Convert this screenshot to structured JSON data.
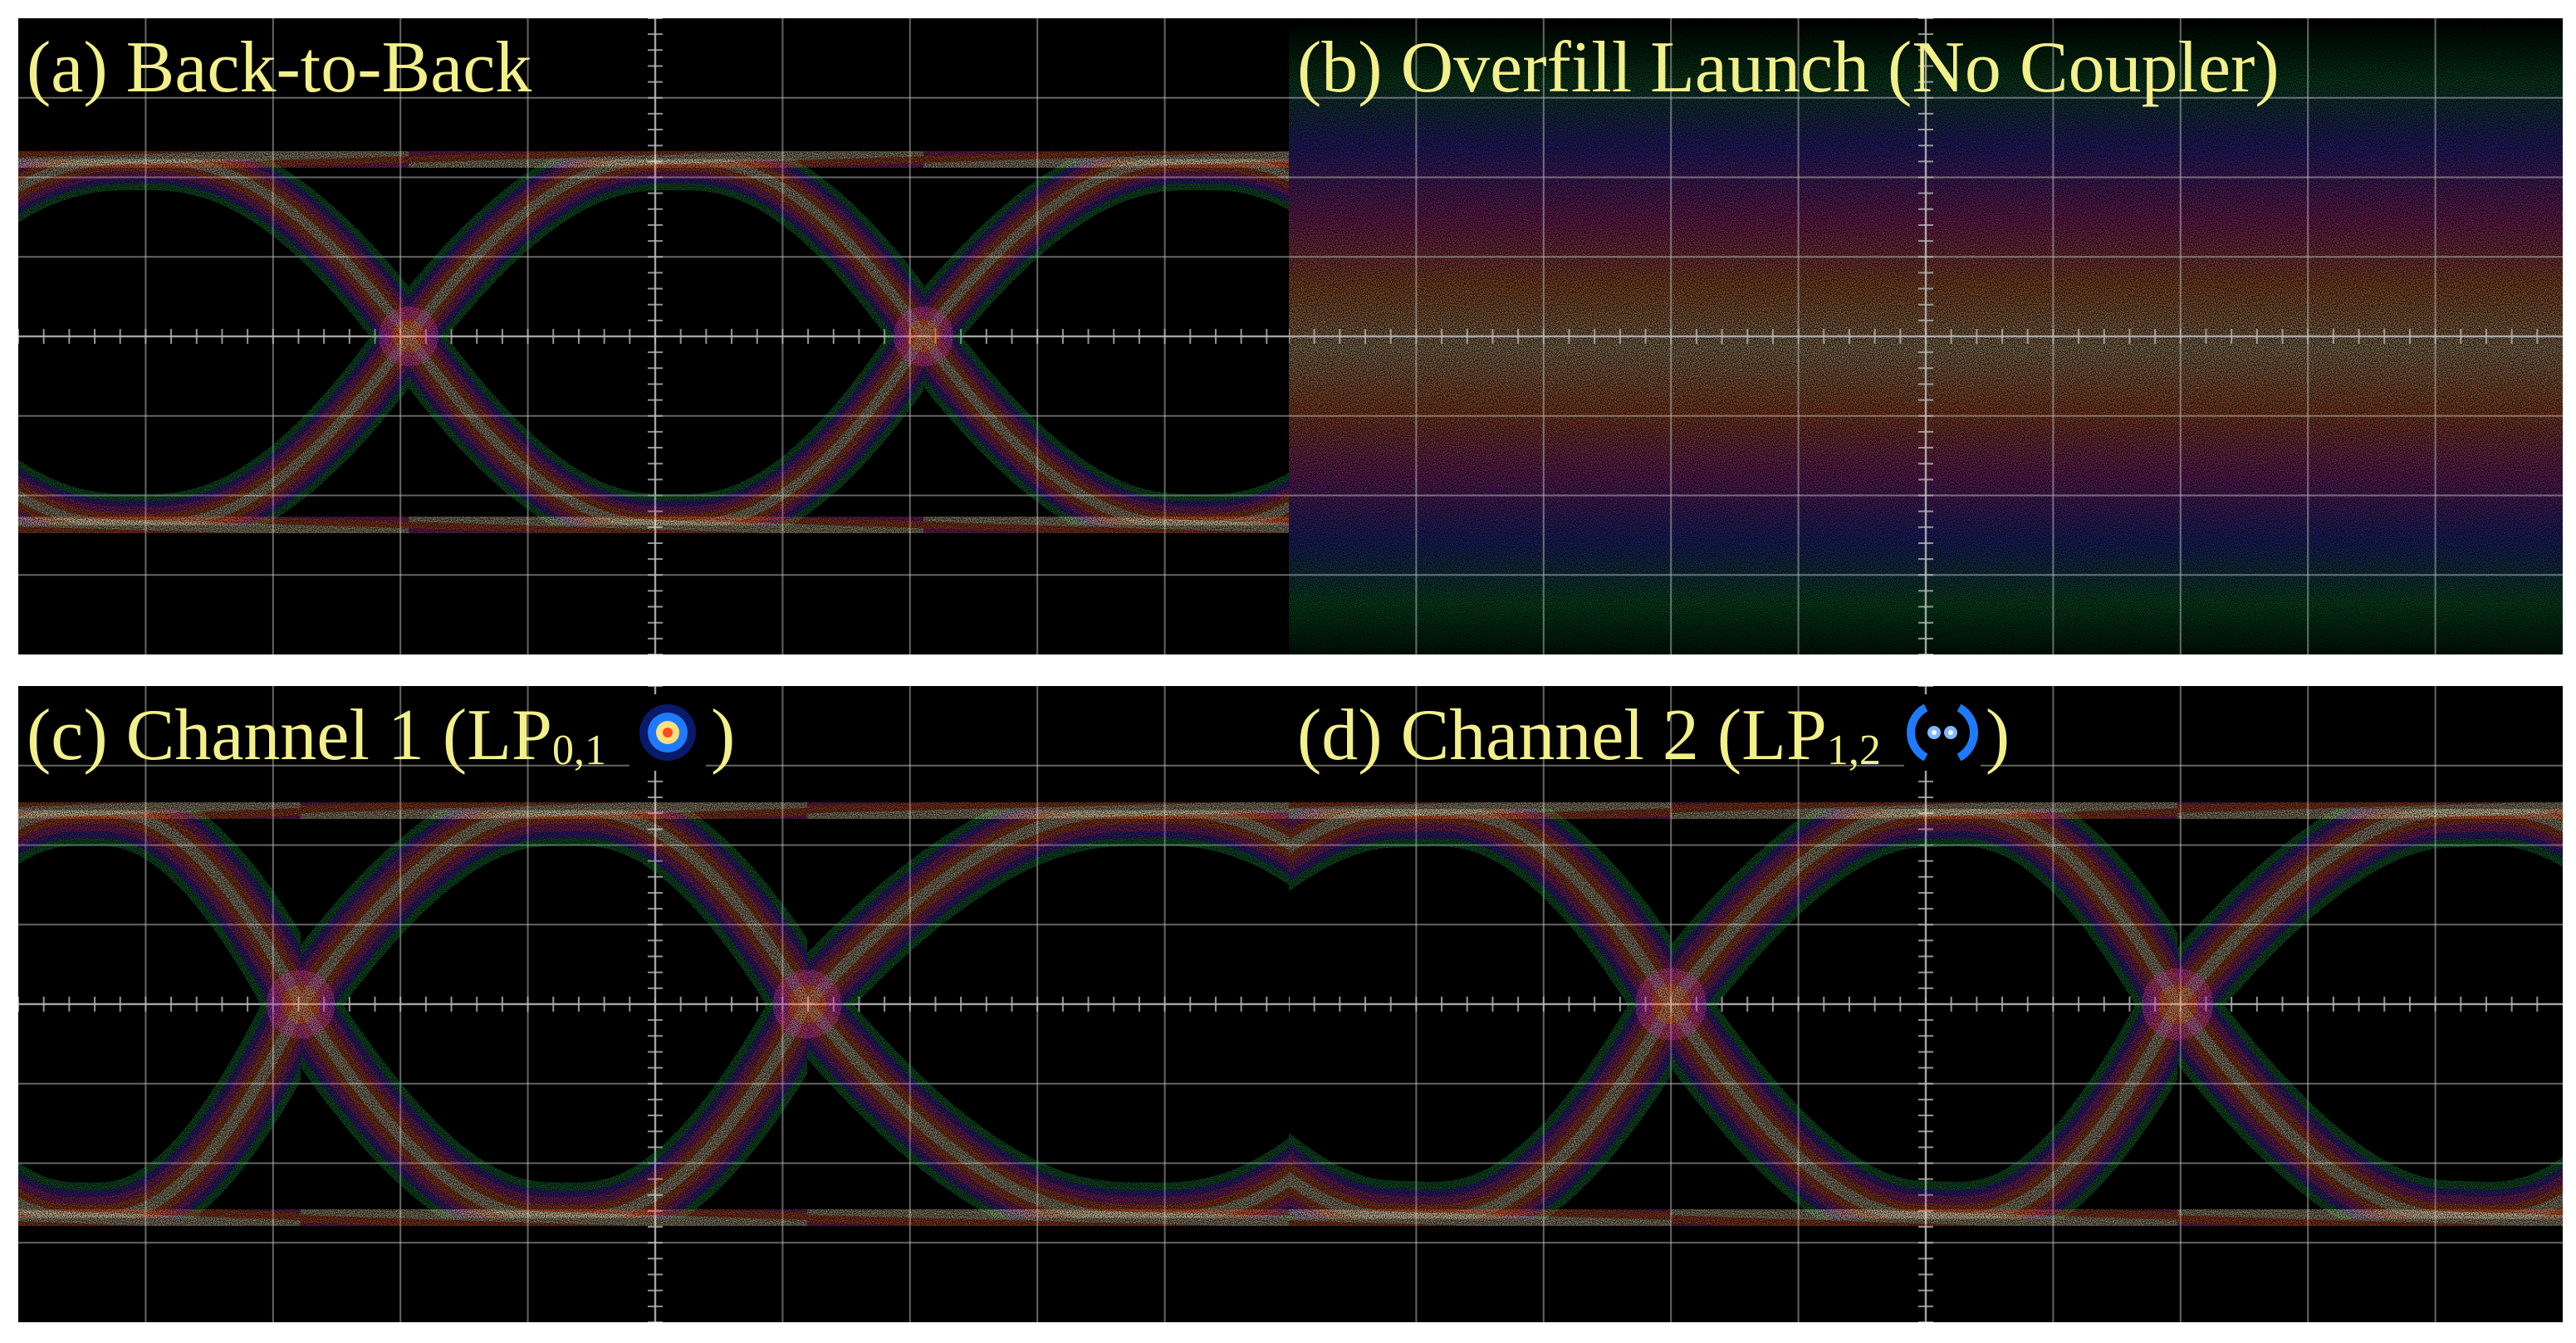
{
  "panels": [
    {
      "id": "a",
      "label": "(a) Back-to-Back"
    },
    {
      "id": "b",
      "label": "(b) Overfill Launch (No Coupler)"
    },
    {
      "id": "c",
      "prefix": "(c) Channel 1 (LP",
      "sub": "0,1",
      "suffix": ")",
      "mode_icon": "lp01-mode-icon"
    },
    {
      "id": "d",
      "prefix": "(d) Channel 2 (LP",
      "sub": "1,2",
      "suffix": ")",
      "mode_icon": "lp12-mode-icon"
    }
  ],
  "colors": {
    "background": "#000000",
    "grid": "#b8b8b8",
    "label": "#f3f08a",
    "trace_core": "#fff3c6",
    "trace_hot": "#ff6a3a",
    "trace_mid": "#d23aa8",
    "trace_low": "#5b3bd8",
    "trace_edge": "#1fa04a"
  }
}
